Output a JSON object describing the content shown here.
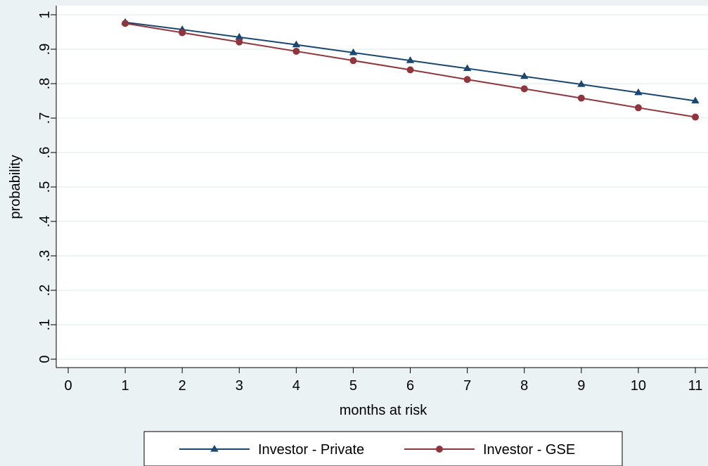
{
  "chart_data": {
    "type": "line",
    "title": "",
    "xlabel": "months at risk",
    "ylabel": "probability",
    "xlim": [
      0,
      11
    ],
    "ylim": [
      0,
      1
    ],
    "x_ticks": [
      0,
      1,
      2,
      3,
      4,
      5,
      6,
      7,
      8,
      9,
      10,
      11
    ],
    "y_ticks": [
      0,
      0.1,
      0.2,
      0.3,
      0.4,
      0.5,
      0.6,
      0.7,
      0.8,
      0.9,
      1
    ],
    "y_tick_labels": [
      "0",
      ".1",
      ".2",
      ".3",
      ".4",
      ".5",
      ".6",
      ".7",
      ".8",
      ".9",
      "1"
    ],
    "grid": true,
    "legend_position": "bottom",
    "colors": {
      "background": "#eaf2f3",
      "plot_background": "#ffffff",
      "grid": "#eaf2f3"
    },
    "series": [
      {
        "name": "Investor - Private",
        "color": "#1a476f",
        "marker": "triangle",
        "x": [
          1,
          2,
          3,
          4,
          5,
          6,
          7,
          8,
          9,
          10,
          11
        ],
        "y": [
          0.978,
          0.957,
          0.935,
          0.913,
          0.89,
          0.867,
          0.844,
          0.821,
          0.798,
          0.774,
          0.75
        ]
      },
      {
        "name": "Investor - GSE",
        "color": "#90353b",
        "marker": "circle",
        "x": [
          1,
          2,
          3,
          4,
          5,
          6,
          7,
          8,
          9,
          10,
          11
        ],
        "y": [
          0.975,
          0.948,
          0.921,
          0.894,
          0.867,
          0.84,
          0.812,
          0.785,
          0.758,
          0.73,
          0.703
        ]
      }
    ]
  }
}
